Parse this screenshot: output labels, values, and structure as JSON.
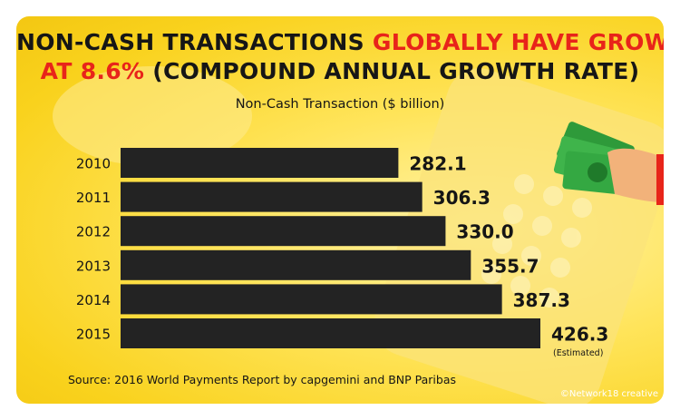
{
  "title": {
    "line1_prefix": "NON-CASH TRANSACTIONS ",
    "line1_highlight": "GLOBALLY HAVE GROWN",
    "line2_highlight": "AT 8.6%",
    "line2_suffix": " (COMPOUND ANNUAL GROWTH RATE)"
  },
  "source": "Source: 2016 World Payments Report by capgemini and BNP Paribas",
  "credit": "©Network18 creative",
  "colors": {
    "background": "#f9d21d",
    "bar": "#232323",
    "highlight": "#e8241a",
    "text": "#161616"
  },
  "chart_data": {
    "type": "bar",
    "orientation": "horizontal",
    "title": "Non-Cash Transaction ($ billion)",
    "categories": [
      "2010",
      "2011",
      "2012",
      "2013",
      "2014",
      "2015"
    ],
    "values": [
      282.1,
      306.3,
      330.0,
      355.7,
      387.3,
      426.3
    ],
    "labels": [
      "282.1",
      "306.3",
      "330.0",
      "355.7",
      "387.3",
      "426.3"
    ],
    "annotations": [
      {
        "category": "2015",
        "text": "(Estimated)"
      }
    ],
    "xlim": [
      0,
      426.3
    ],
    "grid": false,
    "legend": "none"
  }
}
